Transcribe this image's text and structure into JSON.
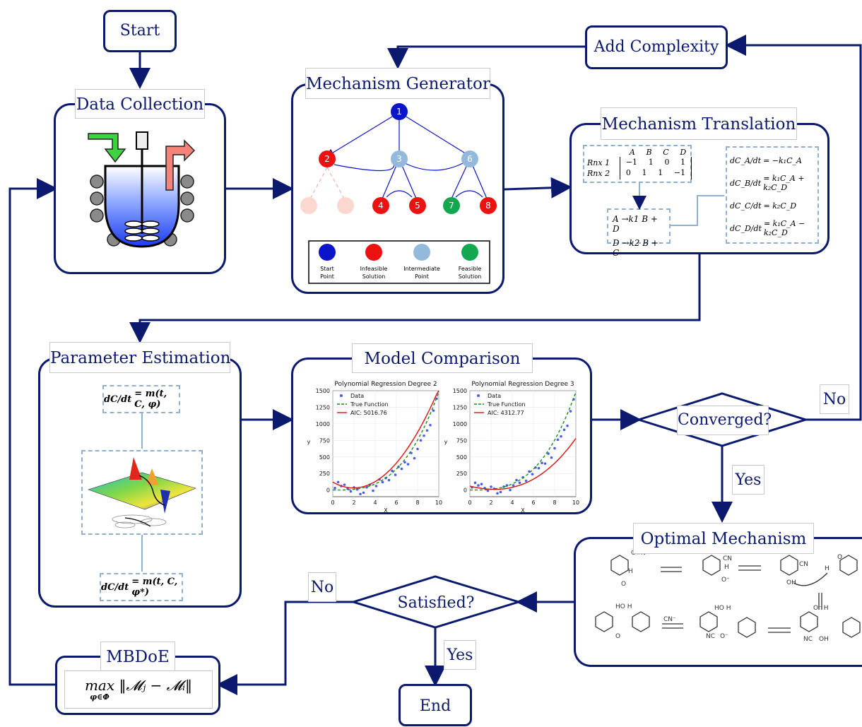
{
  "nodes": {
    "start": "Start",
    "end": "End",
    "add_complexity": "Add Complexity",
    "data_collection": "Data Collection",
    "mechanism_generator": "Mechanism Generator",
    "mechanism_translation": "Mechanism Translation",
    "parameter_estimation": "Parameter Estimation",
    "model_comparison": "Model Comparison",
    "optimal_mechanism": "Optimal Mechanism",
    "mbdoe": "MBDoE",
    "converged": "Converged?",
    "satisfied": "Satisfied?"
  },
  "edge_labels": {
    "no_top": "No",
    "yes_conv": "Yes",
    "no_sat": "No",
    "yes_sat": "Yes"
  },
  "generator": {
    "nodes": [
      "1",
      "2",
      "3",
      "6",
      "4",
      "5",
      "7",
      "8"
    ],
    "legend": [
      {
        "label1": "Start",
        "label2": "Point",
        "color": "#0a14c8"
      },
      {
        "label1": "Infeasible",
        "label2": "Solution",
        "color": "#ee1111"
      },
      {
        "label1": "Intermediate",
        "label2": "Point",
        "color": "#93b9dc"
      },
      {
        "label1": "Feasible",
        "label2": "Solution",
        "color": "#11a84f"
      }
    ]
  },
  "translation": {
    "cols": [
      "A",
      "B",
      "C",
      "D"
    ],
    "rows": [
      {
        "name": "Rnx 1",
        "vals": [
          "−1",
          "1",
          "0",
          "1"
        ]
      },
      {
        "name": "Rnx 2",
        "vals": [
          "0",
          "1",
          "1",
          "−1"
        ]
      }
    ],
    "reactions": [
      "A →k1 B + D",
      "D →k2 B + C"
    ],
    "odes": [
      {
        "lhs": "dC_A/dt",
        "rhs": "= −k₁C_A"
      },
      {
        "lhs": "dC_B/dt",
        "rhs": "= k₁C_A + k₂C_D"
      },
      {
        "lhs": "dC_C/dt",
        "rhs": "= k₂C_D"
      },
      {
        "lhs": "dC_D/dt",
        "rhs": "= k₁C_A − k₂C_D"
      }
    ]
  },
  "estimation": {
    "eq_top": "= m(t, C, φ)",
    "eq_bottom": "= m(t, C, φ*)"
  },
  "mbdoe_formula": "max ‖𝓜ⱼ − 𝓜ᵢ‖",
  "mbdoe_sub": "φ∈Φ",
  "chart_data": [
    {
      "type": "scatter",
      "title": "Polynomial Regression Degree 2",
      "xlabel": "X",
      "ylabel": "y",
      "xlim": [
        0,
        10
      ],
      "ylim": [
        -100,
        1500
      ],
      "xticks": [
        0,
        2,
        4,
        6,
        8,
        10
      ],
      "yticks": [
        0,
        250,
        500,
        750,
        1000,
        1250,
        1500
      ],
      "legend": [
        "Data",
        "True Function",
        "AIC: 5016.76"
      ],
      "data_x": [
        0.2,
        0.5,
        0.8,
        1.1,
        1.4,
        1.7,
        2.0,
        2.3,
        2.6,
        2.9,
        3.2,
        3.5,
        3.8,
        4.1,
        4.4,
        4.7,
        5.0,
        5.3,
        5.6,
        5.9,
        6.2,
        6.5,
        6.8,
        7.1,
        7.4,
        7.7,
        8.0,
        8.3,
        8.6,
        8.9,
        9.2,
        9.5,
        9.8
      ],
      "data_y": [
        30,
        120,
        60,
        80,
        20,
        -20,
        40,
        10,
        -60,
        -40,
        40,
        80,
        -10,
        60,
        160,
        120,
        180,
        150,
        290,
        230,
        350,
        320,
        420,
        390,
        560,
        480,
        620,
        750,
        820,
        900,
        980,
        1200,
        1380
      ],
      "true_coeff": [
        1.5,
        -0.2,
        0
      ],
      "fit_coeff": [
        120,
        -90,
        23
      ]
    },
    {
      "type": "scatter",
      "title": "Polynomial Regression Degree 3",
      "xlabel": "X",
      "ylabel": "y",
      "xlim": [
        0,
        10
      ],
      "ylim": [
        -100,
        1500
      ],
      "xticks": [
        0,
        2,
        4,
        6,
        8,
        10
      ],
      "yticks": [
        0,
        250,
        500,
        750,
        1000,
        1250,
        1500
      ],
      "legend": [
        "Data",
        "True Function",
        "AIC: 4312.77"
      ],
      "data_x": [
        0.2,
        0.5,
        0.8,
        1.1,
        1.4,
        1.7,
        2.0,
        2.3,
        2.6,
        2.9,
        3.2,
        3.5,
        3.8,
        4.1,
        4.4,
        4.7,
        5.0,
        5.3,
        5.6,
        5.9,
        6.2,
        6.5,
        6.8,
        7.1,
        7.4,
        7.7,
        8.0,
        8.3,
        8.6,
        8.9,
        9.2,
        9.5,
        9.8
      ],
      "data_y": [
        40,
        110,
        70,
        90,
        30,
        -10,
        50,
        20,
        -50,
        -30,
        50,
        70,
        0,
        70,
        150,
        110,
        190,
        140,
        280,
        240,
        340,
        330,
        410,
        400,
        550,
        490,
        630,
        760,
        810,
        910,
        970,
        1190,
        1370
      ],
      "true_coeff": [
        1.5,
        -0.2,
        0
      ],
      "fit_coeff": [
        60,
        -40,
        8
      ]
    }
  ]
}
